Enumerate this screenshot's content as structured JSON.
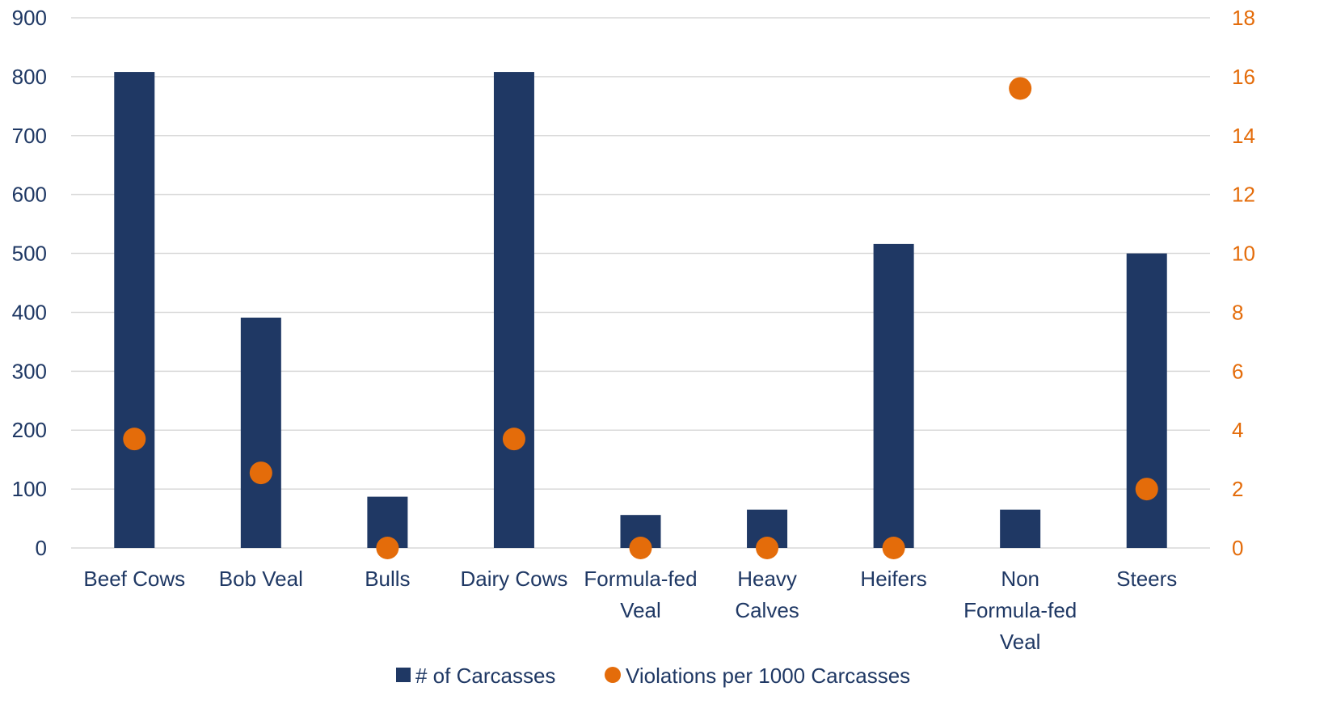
{
  "chart_data": {
    "type": "bar",
    "title": "",
    "xlabel": "",
    "ylabel": "",
    "y2label": "",
    "categories": [
      [
        "Beef Cows"
      ],
      [
        "Bob Veal"
      ],
      [
        "Bulls"
      ],
      [
        "Dairy Cows"
      ],
      [
        "Formula-fed",
        "Veal"
      ],
      [
        "Heavy",
        "Calves"
      ],
      [
        "Heifers"
      ],
      [
        "Non",
        "Formula-fed",
        "Veal"
      ],
      [
        "Steers"
      ]
    ],
    "series": [
      {
        "name": "# of Carcasses",
        "type": "bar",
        "axis": "left",
        "color": "#1F3864",
        "values": [
          808,
          391,
          87,
          808,
          56,
          65,
          516,
          65,
          500
        ]
      },
      {
        "name": "Violations per 1000 Carcasses",
        "type": "scatter",
        "axis": "right",
        "color": "#E46C0A",
        "values": [
          3.7,
          2.55,
          0,
          3.7,
          0,
          0,
          0,
          15.6,
          2.0
        ]
      }
    ],
    "y_left": {
      "min": 0,
      "max": 900,
      "step": 100,
      "ticks": [
        "0",
        "100",
        "200",
        "300",
        "400",
        "500",
        "600",
        "700",
        "800",
        "900"
      ]
    },
    "y_right": {
      "min": 0,
      "max": 18,
      "step": 2,
      "ticks": [
        "0",
        "2",
        "4",
        "6",
        "8",
        "10",
        "12",
        "14",
        "16",
        "18"
      ]
    },
    "grid": true,
    "legend": "bottom-center",
    "legend_items": [
      {
        "label": "# of Carcasses",
        "marker": "square",
        "color": "#1F3864"
      },
      {
        "label": "Violations per 1000 Carcasses",
        "marker": "circle",
        "color": "#E46C0A"
      }
    ]
  }
}
